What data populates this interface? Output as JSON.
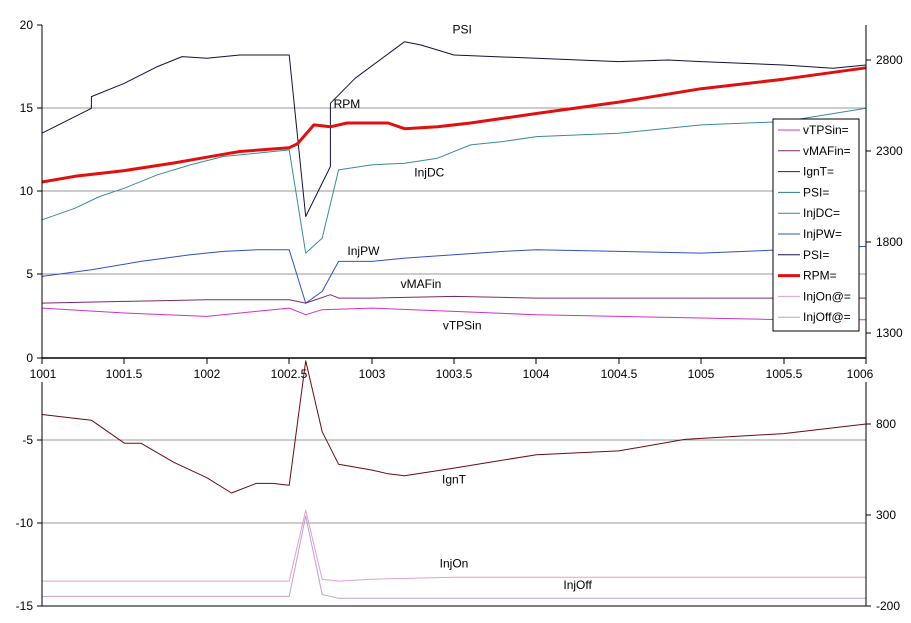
{
  "chart_data": [
    {
      "type": "line",
      "name": "upper-panel",
      "x_ticks": [
        "1001",
        "1001.5",
        "1002",
        "1002.5",
        "1003",
        "1003.5",
        "1004",
        "1004.5",
        "1005",
        "1005.5",
        "1006"
      ],
      "y_left_ticks": [
        "0",
        "5",
        "10",
        "15",
        "20"
      ],
      "y_right_ticks": [
        "1300",
        "1800",
        "2300",
        "2800"
      ],
      "xlim": [
        1001,
        1006
      ],
      "ylim_left": [
        0,
        20
      ],
      "ylim_right": [
        1175,
        2925
      ],
      "legend": {
        "position": "right",
        "entries": [
          {
            "label": "vTPSin=",
            "color": "#cc33cc",
            "width": 1
          },
          {
            "label": "vMAFin=",
            "color": "#7a2a6a",
            "width": 1
          },
          {
            "label": "IgnT=",
            "color": "#6a0a10",
            "width": 1
          },
          {
            "label": "PSI=",
            "color": "#2a7a7a",
            "width": 1
          },
          {
            "label": "InjDC=",
            "color": "#3a8a9a",
            "width": 1
          },
          {
            "label": "InjPW=",
            "color": "#3050c0",
            "width": 1
          },
          {
            "label": "PSI=",
            "color": "#101040",
            "width": 1
          },
          {
            "label": "RPM=",
            "color": "#e01010",
            "width": 3
          },
          {
            "label": "InjOn@=",
            "color": "#e0a0d0",
            "width": 1
          },
          {
            "label": "InjOff@=",
            "color": "#c0a0d0",
            "width": 1
          }
        ]
      },
      "series": [
        {
          "name": "PSI",
          "axis": "left",
          "color": "#101040",
          "width": 1,
          "x": [
            1001,
            1001.3,
            1001.3,
            1001.5,
            1001.7,
            1001.85,
            1002,
            1002.2,
            1002.5,
            1002.6,
            1002.75,
            1002.75,
            1002.9,
            1003.2,
            1003.3,
            1003.5,
            1004,
            1004.5,
            1004.8,
            1005,
            1005.5,
            1005.8,
            1006
          ],
          "y": [
            13.5,
            15.0,
            15.7,
            16.5,
            17.5,
            18.1,
            18.0,
            18.2,
            18.2,
            8.5,
            11.5,
            15.3,
            16.8,
            19.0,
            18.8,
            18.2,
            18.0,
            17.8,
            17.9,
            17.8,
            17.6,
            17.4,
            17.6
          ],
          "labels": [
            {
              "text": "PSI",
              "x": 1003.55,
              "y": 19.5
            }
          ]
        },
        {
          "name": "RPM",
          "axis": "right",
          "color": "#e01010",
          "width": 3,
          "x": [
            1001,
            1001.2,
            1001.5,
            1001.8,
            1002,
            1002.2,
            1002.5,
            1002.55,
            1002.65,
            1002.75,
            1002.85,
            1003,
            1003.1,
            1003.2,
            1003.4,
            1003.6,
            1004,
            1004.5,
            1005,
            1005.5,
            1006
          ],
          "y": [
            2100,
            2130,
            2160,
            2200,
            2230,
            2260,
            2280,
            2300,
            2400,
            2390,
            2410,
            2410,
            2410,
            2380,
            2390,
            2410,
            2460,
            2520,
            2590,
            2640,
            2700
          ],
          "labels": [
            {
              "text": "RPM",
              "x": 1002.85,
              "y": 2490
            }
          ]
        },
        {
          "name": "InjDC",
          "axis": "left",
          "color": "#3a8a9a",
          "width": 1,
          "x": [
            1001,
            1001.2,
            1001.35,
            1001.5,
            1001.7,
            1001.9,
            1002.1,
            1002.3,
            1002.5,
            1002.6,
            1002.7,
            1002.8,
            1003,
            1003.2,
            1003.4,
            1003.6,
            1003.8,
            1004,
            1004.5,
            1005,
            1005.5,
            1006
          ],
          "y": [
            8.3,
            9.0,
            9.7,
            10.2,
            11.0,
            11.6,
            12.1,
            12.3,
            12.5,
            6.3,
            7.2,
            11.3,
            11.6,
            11.7,
            12.0,
            12.8,
            13.0,
            13.3,
            13.5,
            14.0,
            14.2,
            15.0
          ],
          "labels": [
            {
              "text": "InjDC",
              "x": 1003.35,
              "y": 10.9
            }
          ]
        },
        {
          "name": "InjPW",
          "axis": "left",
          "color": "#3050c0",
          "width": 1,
          "x": [
            1001,
            1001.3,
            1001.6,
            1001.9,
            1002.1,
            1002.3,
            1002.5,
            1002.6,
            1002.7,
            1002.8,
            1003,
            1003.2,
            1003.5,
            1003.8,
            1004,
            1004.5,
            1005,
            1005.5,
            1006
          ],
          "y": [
            4.9,
            5.3,
            5.8,
            6.2,
            6.4,
            6.5,
            6.5,
            3.3,
            4.0,
            5.8,
            5.8,
            6.0,
            6.2,
            6.4,
            6.5,
            6.4,
            6.3,
            6.5,
            6.7
          ],
          "labels": [
            {
              "text": "InjPW",
              "x": 1002.95,
              "y": 6.2
            }
          ]
        },
        {
          "name": "vMAFin",
          "axis": "left",
          "color": "#7a2a6a",
          "width": 1,
          "x": [
            1001,
            1001.5,
            1002,
            1002.5,
            1002.6,
            1002.75,
            1002.8,
            1003,
            1003.5,
            1004,
            1004.5,
            1005,
            1005.5,
            1006
          ],
          "y": [
            3.3,
            3.4,
            3.5,
            3.5,
            3.3,
            3.8,
            3.6,
            3.6,
            3.7,
            3.6,
            3.6,
            3.6,
            3.6,
            3.6
          ],
          "labels": [
            {
              "text": "vMAFin",
              "x": 1003.3,
              "y": 4.2
            }
          ]
        },
        {
          "name": "vTPSin",
          "axis": "left",
          "color": "#cc33cc",
          "width": 1,
          "x": [
            1001,
            1001.5,
            1002,
            1002.3,
            1002.5,
            1002.6,
            1002.7,
            1003,
            1003.5,
            1004,
            1004.5,
            1005,
            1005.5,
            1006
          ],
          "y": [
            3.0,
            2.7,
            2.5,
            2.8,
            3.0,
            2.6,
            2.9,
            3.0,
            2.8,
            2.6,
            2.5,
            2.4,
            2.3,
            2.3
          ],
          "labels": [
            {
              "text": "vTPSin",
              "x": 1003.55,
              "y": 1.7
            }
          ]
        }
      ]
    },
    {
      "type": "line",
      "name": "lower-panel",
      "y_left_ticks": [
        "-5",
        "-10",
        "-15"
      ],
      "y_right_ticks": [
        "800",
        "300",
        "-200"
      ],
      "xlim": [
        1001,
        1006
      ],
      "ylim_left": [
        -15,
        -2
      ],
      "ylim_right": [
        -200,
        1100
      ],
      "series": [
        {
          "name": "IgnT",
          "axis": "left",
          "color": "#6a0a10",
          "width": 1,
          "x": [
            1001,
            1001.3,
            1001.5,
            1001.6,
            1001.8,
            1002,
            1002.15,
            1002.3,
            1002.4,
            1002.5,
            1002.6,
            1002.7,
            1002.8,
            1003,
            1003.1,
            1003.2,
            1003.5,
            1004,
            1004.5,
            1004.9,
            1005.5,
            1006
          ],
          "y": [
            -5.0,
            -5.3,
            -6.5,
            -6.5,
            -7.5,
            -8.3,
            -9.1,
            -8.6,
            -8.6,
            -8.7,
            -2.2,
            -5.9,
            -7.6,
            -7.9,
            -8.1,
            -8.2,
            -7.8,
            -7.1,
            -6.9,
            -6.3,
            -6.0,
            -5.5
          ],
          "labels": [
            {
              "text": "IgnT",
              "x": 1003.5,
              "y": -8.6
            }
          ]
        },
        {
          "name": "InjOn",
          "axis": "left",
          "color": "#e0a0d0",
          "width": 1,
          "x": [
            1001,
            1001.5,
            1002,
            1002.5,
            1002.6,
            1002.7,
            1002.8,
            1003,
            1003.5,
            1004,
            1004.5,
            1005,
            1005.5,
            1006
          ],
          "y": [
            -13.7,
            -13.7,
            -13.7,
            -13.7,
            -10.0,
            -13.6,
            -13.7,
            -13.6,
            -13.5,
            -13.5,
            -13.5,
            -13.5,
            -13.5,
            -13.5
          ],
          "labels": [
            {
              "text": "InjOn",
              "x": 1003.5,
              "y": -13.0
            }
          ]
        },
        {
          "name": "InjOff",
          "axis": "left",
          "color": "#c0a0d0",
          "width": 1,
          "x": [
            1001,
            1001.5,
            1002,
            1002.5,
            1002.6,
            1002.7,
            1002.8,
            1003,
            1003.5,
            1004,
            1004.5,
            1005,
            1005.5,
            1006
          ],
          "y": [
            -14.5,
            -14.5,
            -14.5,
            -14.5,
            -10.3,
            -14.4,
            -14.6,
            -14.6,
            -14.6,
            -14.6,
            -14.6,
            -14.6,
            -14.6,
            -14.6
          ],
          "labels": [
            {
              "text": "InjOff",
              "x": 1004.25,
              "y": -14.1
            }
          ]
        }
      ]
    }
  ]
}
